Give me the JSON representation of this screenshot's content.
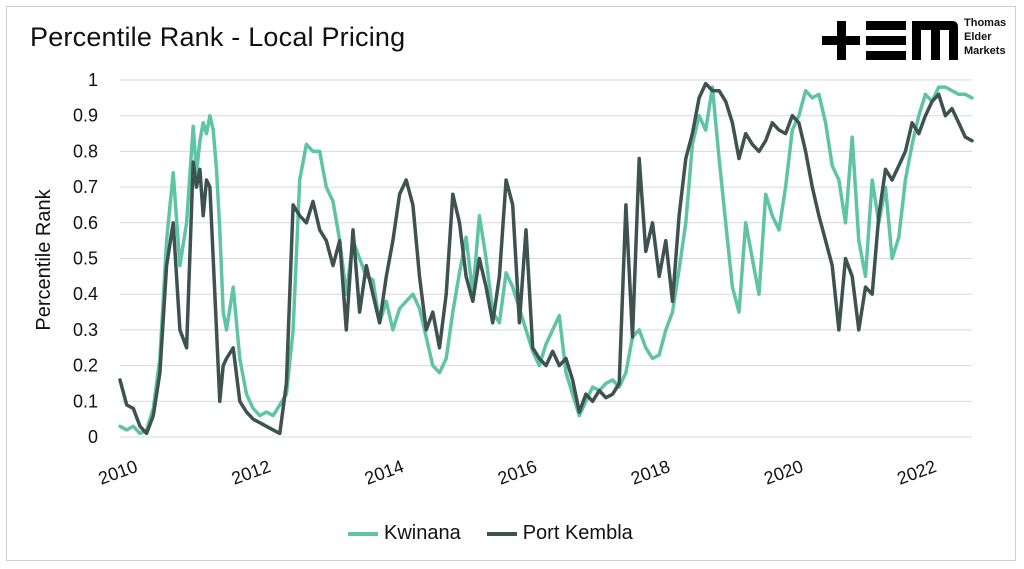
{
  "title": "Percentile Rank - Local Pricing",
  "logo": {
    "line1": "Thomas",
    "line2": "Elder",
    "line3": "Markets",
    "mark_color": "#000000"
  },
  "chart_data": {
    "type": "line",
    "title": "Percentile Rank - Local Pricing",
    "xlabel": "",
    "ylabel": "Percentile Rank",
    "xlim": [
      2010,
      2022.8
    ],
    "ylim": [
      0,
      1
    ],
    "x_tick_labels": [
      "2010",
      "2012",
      "2014",
      "2016",
      "2018",
      "2020",
      "2022"
    ],
    "y_tick_labels": [
      "0",
      "0.1",
      "0.2",
      "0.3",
      "0.4",
      "0.5",
      "0.6",
      "0.7",
      "0.8",
      "0.9",
      "1"
    ],
    "grid": true,
    "legend_position": "bottom",
    "series": [
      {
        "name": "Kwinana",
        "color": "#5fc4a4",
        "x": [
          2010.0,
          2010.1,
          2010.2,
          2010.3,
          2010.4,
          2010.5,
          2010.6,
          2010.7,
          2010.8,
          2010.9,
          2011.0,
          2011.1,
          2011.15,
          2011.2,
          2011.25,
          2011.3,
          2011.35,
          2011.4,
          2011.45,
          2011.5,
          2011.55,
          2011.6,
          2011.7,
          2011.8,
          2011.9,
          2012.0,
          2012.1,
          2012.2,
          2012.3,
          2012.4,
          2012.5,
          2012.6,
          2012.7,
          2012.8,
          2012.9,
          2013.0,
          2013.1,
          2013.2,
          2013.3,
          2013.4,
          2013.5,
          2013.6,
          2013.7,
          2013.8,
          2013.9,
          2014.0,
          2014.1,
          2014.2,
          2014.3,
          2014.4,
          2014.5,
          2014.6,
          2014.7,
          2014.8,
          2014.9,
          2015.0,
          2015.1,
          2015.2,
          2015.3,
          2015.4,
          2015.5,
          2015.6,
          2015.7,
          2015.8,
          2015.9,
          2016.0,
          2016.1,
          2016.2,
          2016.3,
          2016.4,
          2016.5,
          2016.6,
          2016.7,
          2016.8,
          2016.9,
          2017.0,
          2017.1,
          2017.2,
          2017.3,
          2017.4,
          2017.5,
          2017.6,
          2017.7,
          2017.8,
          2017.9,
          2018.0,
          2018.1,
          2018.2,
          2018.3,
          2018.4,
          2018.5,
          2018.6,
          2018.7,
          2018.8,
          2018.9,
          2019.0,
          2019.1,
          2019.2,
          2019.3,
          2019.4,
          2019.5,
          2019.6,
          2019.7,
          2019.8,
          2019.9,
          2020.0,
          2020.1,
          2020.2,
          2020.3,
          2020.4,
          2020.5,
          2020.6,
          2020.7,
          2020.8,
          2020.9,
          2021.0,
          2021.1,
          2021.2,
          2021.3,
          2021.4,
          2021.5,
          2021.6,
          2021.7,
          2021.8,
          2021.9,
          2022.0,
          2022.1,
          2022.2,
          2022.3,
          2022.4,
          2022.5,
          2022.6,
          2022.7,
          2022.8
        ],
        "values": [
          0.03,
          0.02,
          0.03,
          0.01,
          0.02,
          0.08,
          0.22,
          0.55,
          0.74,
          0.48,
          0.6,
          0.87,
          0.74,
          0.83,
          0.88,
          0.85,
          0.9,
          0.86,
          0.75,
          0.58,
          0.35,
          0.3,
          0.42,
          0.22,
          0.12,
          0.08,
          0.06,
          0.07,
          0.06,
          0.09,
          0.12,
          0.3,
          0.72,
          0.82,
          0.8,
          0.8,
          0.7,
          0.66,
          0.55,
          0.4,
          0.55,
          0.5,
          0.45,
          0.44,
          0.32,
          0.38,
          0.3,
          0.36,
          0.38,
          0.4,
          0.36,
          0.28,
          0.2,
          0.18,
          0.22,
          0.35,
          0.46,
          0.56,
          0.4,
          0.62,
          0.5,
          0.35,
          0.32,
          0.46,
          0.42,
          0.36,
          0.3,
          0.24,
          0.2,
          0.26,
          0.3,
          0.34,
          0.18,
          0.12,
          0.06,
          0.1,
          0.14,
          0.13,
          0.15,
          0.16,
          0.14,
          0.18,
          0.28,
          0.3,
          0.25,
          0.22,
          0.23,
          0.3,
          0.35,
          0.47,
          0.6,
          0.82,
          0.9,
          0.86,
          0.98,
          0.78,
          0.6,
          0.42,
          0.35,
          0.6,
          0.5,
          0.4,
          0.68,
          0.62,
          0.58,
          0.7,
          0.86,
          0.9,
          0.97,
          0.95,
          0.96,
          0.88,
          0.76,
          0.72,
          0.6,
          0.84,
          0.55,
          0.45,
          0.72,
          0.6,
          0.7,
          0.5,
          0.56,
          0.72,
          0.82,
          0.9,
          0.96,
          0.94,
          0.98,
          0.98,
          0.97,
          0.96,
          0.96,
          0.95
        ],
        "legend_label": "Kwinana"
      },
      {
        "name": "Port Kembla",
        "color": "#3e524e",
        "x": [
          2010.0,
          2010.1,
          2010.2,
          2010.3,
          2010.4,
          2010.5,
          2010.6,
          2010.7,
          2010.8,
          2010.9,
          2011.0,
          2011.1,
          2011.15,
          2011.2,
          2011.25,
          2011.3,
          2011.35,
          2011.4,
          2011.45,
          2011.5,
          2011.55,
          2011.6,
          2011.7,
          2011.8,
          2011.9,
          2012.0,
          2012.1,
          2012.2,
          2012.3,
          2012.4,
          2012.5,
          2012.6,
          2012.7,
          2012.8,
          2012.9,
          2013.0,
          2013.1,
          2013.2,
          2013.3,
          2013.4,
          2013.5,
          2013.6,
          2013.7,
          2013.8,
          2013.9,
          2014.0,
          2014.1,
          2014.2,
          2014.3,
          2014.4,
          2014.5,
          2014.6,
          2014.7,
          2014.8,
          2014.9,
          2015.0,
          2015.1,
          2015.2,
          2015.3,
          2015.4,
          2015.5,
          2015.6,
          2015.7,
          2015.8,
          2015.9,
          2016.0,
          2016.1,
          2016.2,
          2016.3,
          2016.4,
          2016.5,
          2016.6,
          2016.7,
          2016.8,
          2016.9,
          2017.0,
          2017.1,
          2017.2,
          2017.3,
          2017.4,
          2017.5,
          2017.6,
          2017.7,
          2017.8,
          2017.9,
          2018.0,
          2018.1,
          2018.2,
          2018.3,
          2018.4,
          2018.5,
          2018.6,
          2018.7,
          2018.8,
          2018.9,
          2019.0,
          2019.1,
          2019.2,
          2019.3,
          2019.4,
          2019.5,
          2019.6,
          2019.7,
          2019.8,
          2019.9,
          2020.0,
          2020.1,
          2020.2,
          2020.3,
          2020.4,
          2020.5,
          2020.6,
          2020.7,
          2020.8,
          2020.9,
          2021.0,
          2021.1,
          2021.2,
          2021.3,
          2021.4,
          2021.5,
          2021.6,
          2021.7,
          2021.8,
          2021.9,
          2022.0,
          2022.1,
          2022.2,
          2022.3,
          2022.4,
          2022.5,
          2022.6,
          2022.7,
          2022.8
        ],
        "values": [
          0.16,
          0.09,
          0.08,
          0.03,
          0.01,
          0.06,
          0.18,
          0.48,
          0.6,
          0.3,
          0.25,
          0.77,
          0.7,
          0.75,
          0.62,
          0.72,
          0.7,
          0.5,
          0.3,
          0.1,
          0.2,
          0.22,
          0.25,
          0.1,
          0.07,
          0.05,
          0.04,
          0.03,
          0.02,
          0.01,
          0.15,
          0.65,
          0.62,
          0.6,
          0.66,
          0.58,
          0.55,
          0.48,
          0.55,
          0.3,
          0.58,
          0.35,
          0.48,
          0.4,
          0.32,
          0.45,
          0.55,
          0.68,
          0.72,
          0.65,
          0.45,
          0.3,
          0.35,
          0.25,
          0.4,
          0.68,
          0.6,
          0.45,
          0.38,
          0.5,
          0.42,
          0.32,
          0.45,
          0.72,
          0.65,
          0.32,
          0.58,
          0.25,
          0.22,
          0.2,
          0.24,
          0.2,
          0.22,
          0.16,
          0.07,
          0.12,
          0.1,
          0.13,
          0.11,
          0.12,
          0.15,
          0.65,
          0.28,
          0.78,
          0.52,
          0.6,
          0.45,
          0.55,
          0.38,
          0.62,
          0.78,
          0.85,
          0.95,
          0.99,
          0.97,
          0.97,
          0.94,
          0.88,
          0.78,
          0.85,
          0.82,
          0.8,
          0.83,
          0.88,
          0.86,
          0.85,
          0.9,
          0.88,
          0.8,
          0.7,
          0.62,
          0.55,
          0.48,
          0.3,
          0.5,
          0.45,
          0.3,
          0.42,
          0.4,
          0.62,
          0.75,
          0.72,
          0.76,
          0.8,
          0.88,
          0.85,
          0.9,
          0.94,
          0.96,
          0.9,
          0.92,
          0.88,
          0.84,
          0.83
        ],
        "legend_label": "Port Kembla"
      }
    ]
  }
}
